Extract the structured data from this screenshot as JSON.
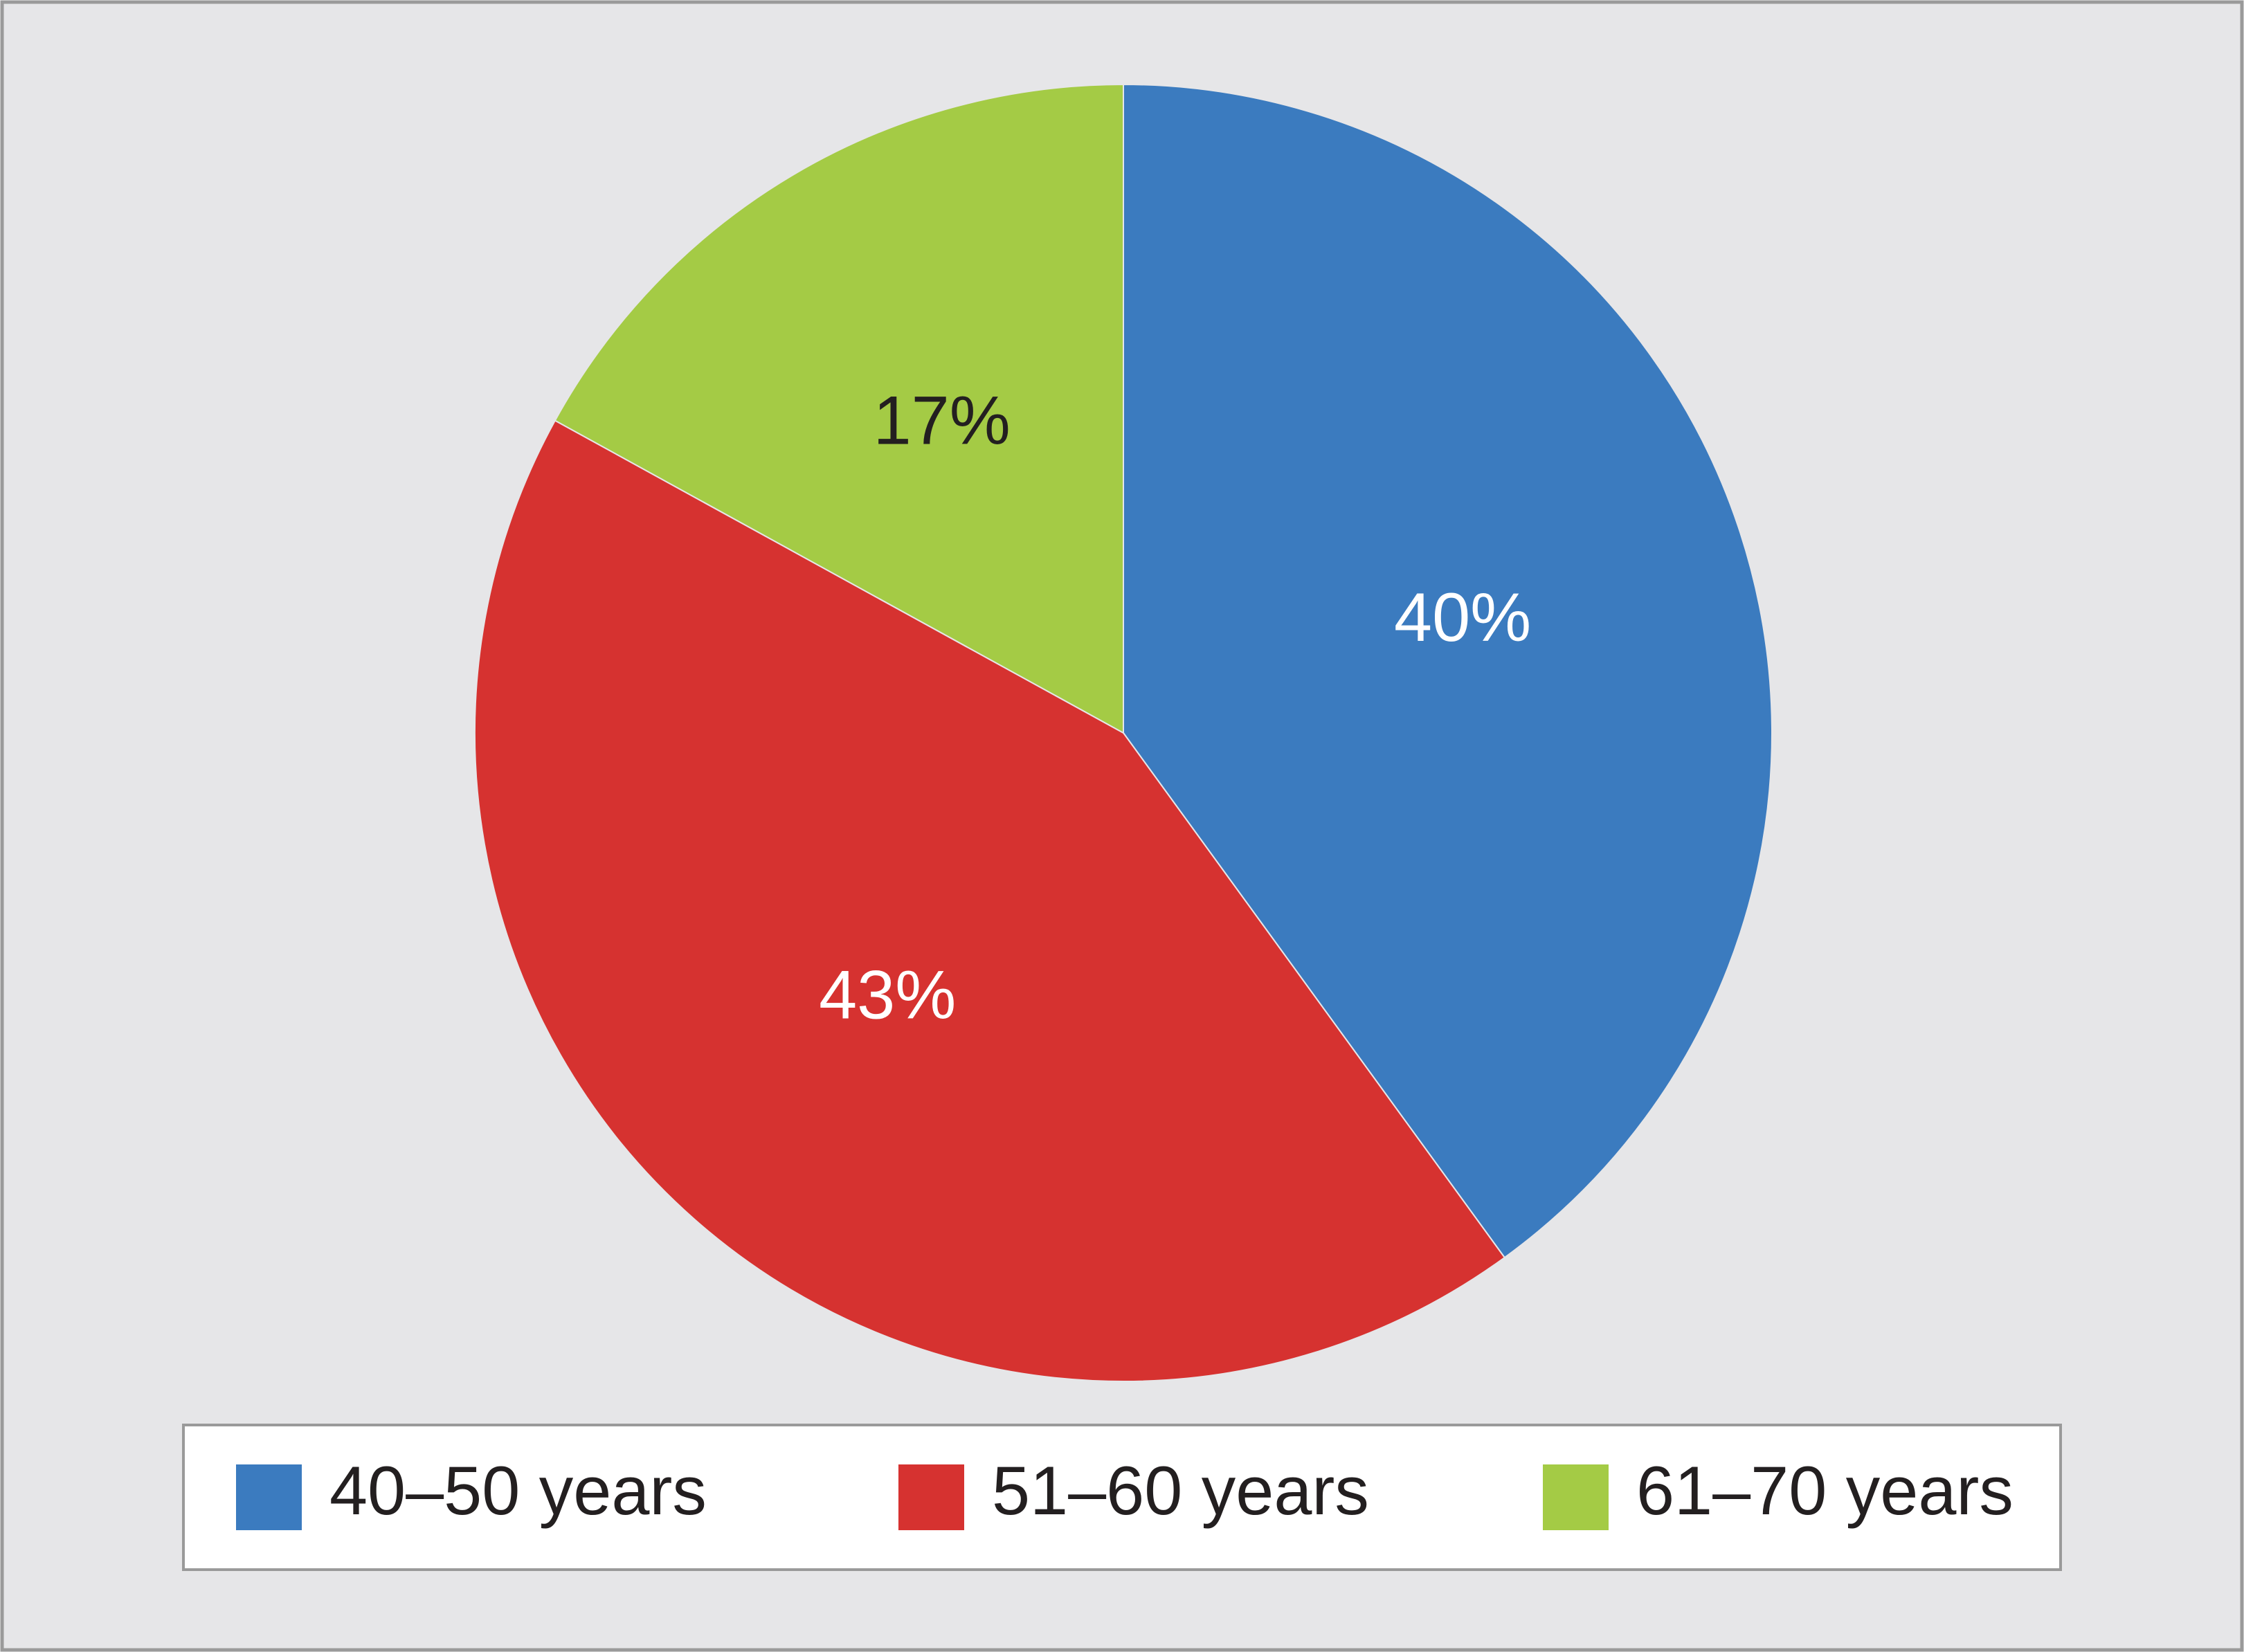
{
  "chart_data": {
    "type": "pie",
    "categories": [
      "40–50 years",
      "51–60 years",
      "61–70 years"
    ],
    "values": [
      40,
      43,
      17
    ],
    "value_labels": [
      "40%",
      "43%",
      "17%"
    ],
    "colors": [
      "#3b7bbf",
      "#d63230",
      "#a4cb45"
    ],
    "label_colors": [
      "#ffffff",
      "#ffffff",
      "#231f20"
    ],
    "legend": "bottom"
  }
}
